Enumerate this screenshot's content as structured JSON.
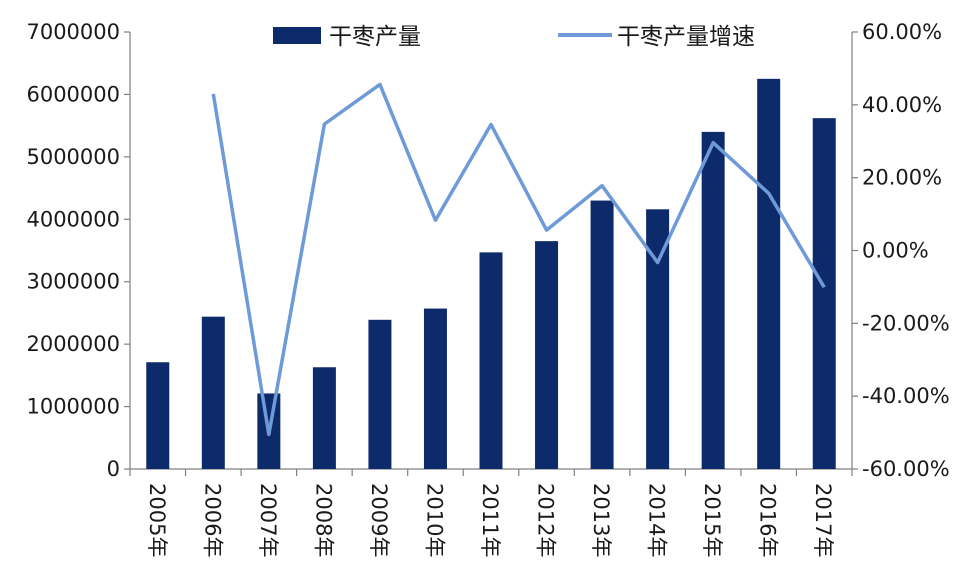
{
  "chart_data": {
    "type": "bar",
    "title": "",
    "categories": [
      "2005年",
      "2006年",
      "2007年",
      "2008年",
      "2009年",
      "2010年",
      "2011年",
      "2012年",
      "2013年",
      "2014年",
      "2015年",
      "2016年",
      "2017年"
    ],
    "series": [
      {
        "name": "干枣产量",
        "type": "bar",
        "axis": "left",
        "color": "#0d2a6b",
        "values": [
          1710000,
          2440000,
          1210000,
          1630000,
          2390000,
          2570000,
          3470000,
          3650000,
          4300000,
          4160000,
          5400000,
          6250000,
          5620000
        ]
      },
      {
        "name": "干枣产量增速",
        "type": "line",
        "axis": "right",
        "color": "#6f9ad8",
        "values": [
          null,
          43.0,
          -50.5,
          34.7,
          45.6,
          8.3,
          34.6,
          5.6,
          17.8,
          -3.3,
          29.6,
          15.7,
          -10.1
        ]
      }
    ],
    "y_left": {
      "ylim": [
        0,
        7000000
      ],
      "ticks": [
        "0",
        "1000000",
        "2000000",
        "3000000",
        "4000000",
        "5000000",
        "6000000",
        "7000000"
      ]
    },
    "y_right": {
      "ylim": [
        -60,
        60
      ],
      "ticks": [
        "-60.00%",
        "-40.00%",
        "-20.00%",
        "0.00%",
        "20.00%",
        "40.00%",
        "60.00%"
      ]
    },
    "grid": false,
    "legend_position": "top-center"
  }
}
